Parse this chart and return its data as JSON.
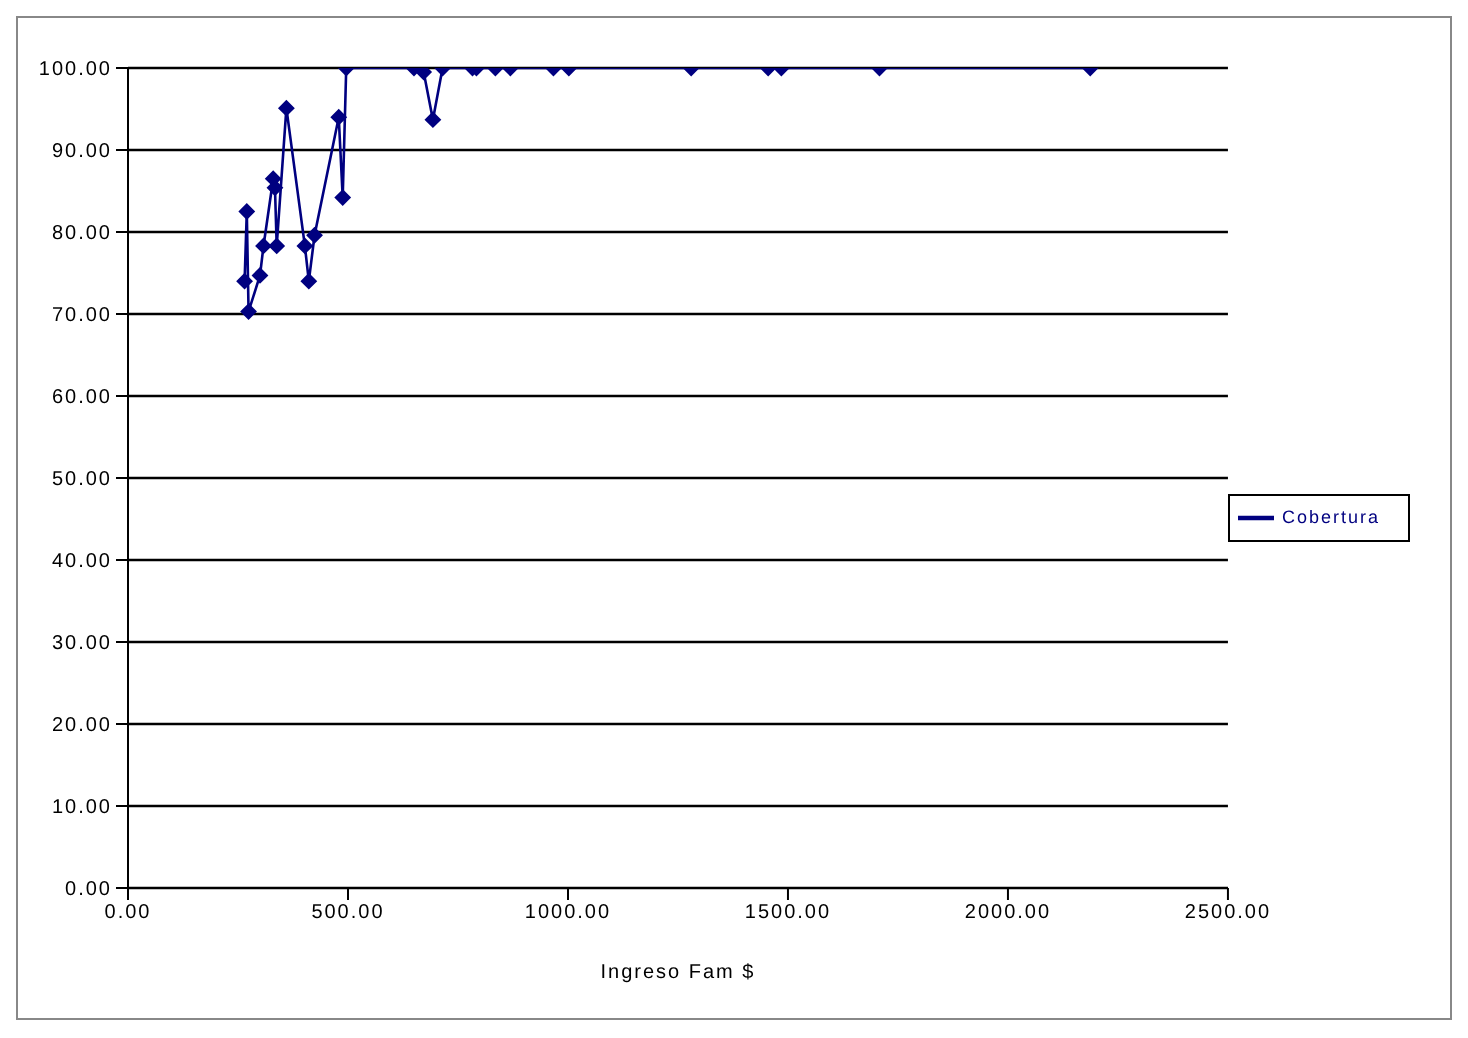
{
  "chart_data": {
    "type": "line",
    "xlabel": "Ingreso Fam $",
    "x": [
      265,
      270,
      274,
      300,
      308,
      330,
      334,
      338,
      360,
      402,
      411,
      424,
      479,
      488,
      496,
      650,
      672,
      693,
      715,
      783,
      792,
      835,
      869,
      967,
      1002,
      1280,
      1455,
      1485,
      1708,
      2187
    ],
    "series": [
      {
        "name": "Cobertura",
        "color": "#000080",
        "values": [
          74.0,
          82.5,
          70.3,
          74.7,
          78.3,
          86.5,
          85.4,
          78.3,
          95.1,
          78.3,
          74.0,
          79.6,
          94.0,
          84.2,
          100,
          100,
          99.5,
          93.7,
          100,
          100,
          100,
          100,
          100,
          100,
          100,
          100,
          100,
          100,
          100,
          100
        ]
      }
    ],
    "xlim": [
      0,
      2500
    ],
    "xticks": [
      {
        "value": 0,
        "label": "0.00"
      },
      {
        "value": 500,
        "label": "500.00"
      },
      {
        "value": 1000,
        "label": "1000.00"
      },
      {
        "value": 1500,
        "label": "1500.00"
      },
      {
        "value": 2000,
        "label": "2000.00"
      },
      {
        "value": 2500,
        "label": "2500.00"
      }
    ],
    "ylim": [
      0,
      100
    ],
    "yticks": [
      {
        "value": 0,
        "label": "0.00"
      },
      {
        "value": 10,
        "label": "10.00"
      },
      {
        "value": 20,
        "label": "20.00"
      },
      {
        "value": 30,
        "label": "30.00"
      },
      {
        "value": 40,
        "label": "40.00"
      },
      {
        "value": 50,
        "label": "50.00"
      },
      {
        "value": 60,
        "label": "60.00"
      },
      {
        "value": 70,
        "label": "70.00"
      },
      {
        "value": 80,
        "label": "80.00"
      },
      {
        "value": 90,
        "label": "90.00"
      },
      {
        "value": 100,
        "label": "100.00"
      }
    ],
    "grid": "y",
    "legend": "right",
    "marker": "diamond",
    "line_style": "solid"
  }
}
